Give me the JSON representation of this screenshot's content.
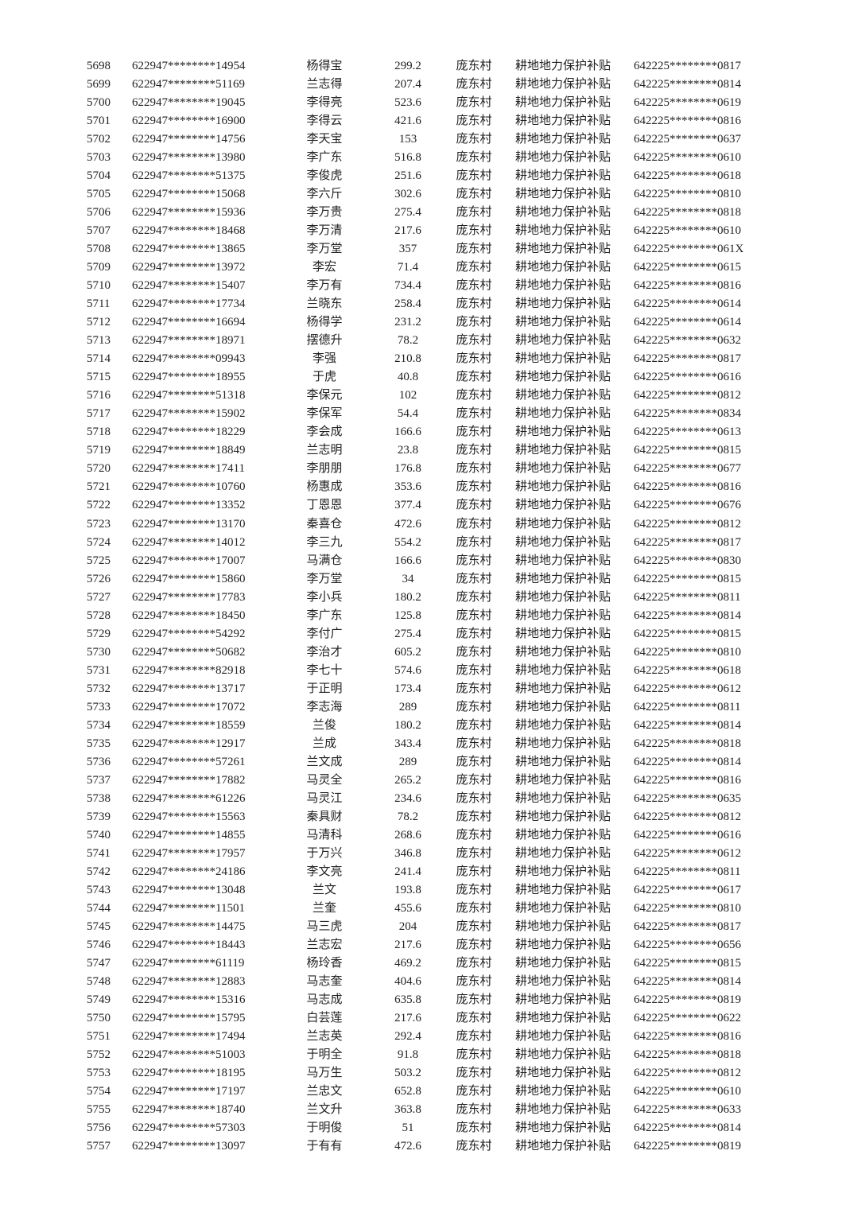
{
  "columns": [
    "seq",
    "account",
    "name",
    "amount",
    "village",
    "subsidy",
    "id_number"
  ],
  "rows": [
    [
      "5698",
      "622947********14954",
      "杨得宝",
      "299.2",
      "庞东村",
      "耕地地力保护补贴",
      "642225********0817"
    ],
    [
      "5699",
      "622947********51169",
      "兰志得",
      "207.4",
      "庞东村",
      "耕地地力保护补贴",
      "642225********0814"
    ],
    [
      "5700",
      "622947********19045",
      "李得亮",
      "523.6",
      "庞东村",
      "耕地地力保护补贴",
      "642225********0619"
    ],
    [
      "5701",
      "622947********16900",
      "李得云",
      "421.6",
      "庞东村",
      "耕地地力保护补贴",
      "642225********0816"
    ],
    [
      "5702",
      "622947********14756",
      "李天宝",
      "153",
      "庞东村",
      "耕地地力保护补贴",
      "642225********0637"
    ],
    [
      "5703",
      "622947********13980",
      "李广东",
      "516.8",
      "庞东村",
      "耕地地力保护补贴",
      "642225********0610"
    ],
    [
      "5704",
      "622947********51375",
      "李俊虎",
      "251.6",
      "庞东村",
      "耕地地力保护补贴",
      "642225********0618"
    ],
    [
      "5705",
      "622947********15068",
      "李六斤",
      "302.6",
      "庞东村",
      "耕地地力保护补贴",
      "642225********0810"
    ],
    [
      "5706",
      "622947********15936",
      "李万贵",
      "275.4",
      "庞东村",
      "耕地地力保护补贴",
      "642225********0818"
    ],
    [
      "5707",
      "622947********18468",
      "李万清",
      "217.6",
      "庞东村",
      "耕地地力保护补贴",
      "642225********0610"
    ],
    [
      "5708",
      "622947********13865",
      "李万堂",
      "357",
      "庞东村",
      "耕地地力保护补贴",
      "642225********061X"
    ],
    [
      "5709",
      "622947********13972",
      "李宏",
      "71.4",
      "庞东村",
      "耕地地力保护补贴",
      "642225********0615"
    ],
    [
      "5710",
      "622947********15407",
      "李万有",
      "734.4",
      "庞东村",
      "耕地地力保护补贴",
      "642225********0816"
    ],
    [
      "5711",
      "622947********17734",
      "兰晓东",
      "258.4",
      "庞东村",
      "耕地地力保护补贴",
      "642225********0614"
    ],
    [
      "5712",
      "622947********16694",
      "杨得学",
      "231.2",
      "庞东村",
      "耕地地力保护补贴",
      "642225********0614"
    ],
    [
      "5713",
      "622947********18971",
      "摆德升",
      "78.2",
      "庞东村",
      "耕地地力保护补贴",
      "642225********0632"
    ],
    [
      "5714",
      "622947********09943",
      "李强",
      "210.8",
      "庞东村",
      "耕地地力保护补贴",
      "642225********0817"
    ],
    [
      "5715",
      "622947********18955",
      "于虎",
      "40.8",
      "庞东村",
      "耕地地力保护补贴",
      "642225********0616"
    ],
    [
      "5716",
      "622947********51318",
      "李保元",
      "102",
      "庞东村",
      "耕地地力保护补贴",
      "642225********0812"
    ],
    [
      "5717",
      "622947********15902",
      "李保军",
      "54.4",
      "庞东村",
      "耕地地力保护补贴",
      "642225********0834"
    ],
    [
      "5718",
      "622947********18229",
      "李会成",
      "166.6",
      "庞东村",
      "耕地地力保护补贴",
      "642225********0613"
    ],
    [
      "5719",
      "622947********18849",
      "兰志明",
      "23.8",
      "庞东村",
      "耕地地力保护补贴",
      "642225********0815"
    ],
    [
      "5720",
      "622947********17411",
      "李朋朋",
      "176.8",
      "庞东村",
      "耕地地力保护补贴",
      "642225********0677"
    ],
    [
      "5721",
      "622947********10760",
      "杨惠成",
      "353.6",
      "庞东村",
      "耕地地力保护补贴",
      "642225********0816"
    ],
    [
      "5722",
      "622947********13352",
      "丁恩恩",
      "377.4",
      "庞东村",
      "耕地地力保护补贴",
      "642225********0676"
    ],
    [
      "5723",
      "622947********13170",
      "秦喜仓",
      "472.6",
      "庞东村",
      "耕地地力保护补贴",
      "642225********0812"
    ],
    [
      "5724",
      "622947********14012",
      "李三九",
      "554.2",
      "庞东村",
      "耕地地力保护补贴",
      "642225********0817"
    ],
    [
      "5725",
      "622947********17007",
      "马满仓",
      "166.6",
      "庞东村",
      "耕地地力保护补贴",
      "642225********0830"
    ],
    [
      "5726",
      "622947********15860",
      "李万堂",
      "34",
      "庞东村",
      "耕地地力保护补贴",
      "642225********0815"
    ],
    [
      "5727",
      "622947********17783",
      "李小兵",
      "180.2",
      "庞东村",
      "耕地地力保护补贴",
      "642225********0811"
    ],
    [
      "5728",
      "622947********18450",
      "李广东",
      "125.8",
      "庞东村",
      "耕地地力保护补贴",
      "642225********0814"
    ],
    [
      "5729",
      "622947********54292",
      "李付广",
      "275.4",
      "庞东村",
      "耕地地力保护补贴",
      "642225********0815"
    ],
    [
      "5730",
      "622947********50682",
      "李治才",
      "605.2",
      "庞东村",
      "耕地地力保护补贴",
      "642225********0810"
    ],
    [
      "5731",
      "622947********82918",
      "李七十",
      "574.6",
      "庞东村",
      "耕地地力保护补贴",
      "642225********0618"
    ],
    [
      "5732",
      "622947********13717",
      "于正明",
      "173.4",
      "庞东村",
      "耕地地力保护补贴",
      "642225********0612"
    ],
    [
      "5733",
      "622947********17072",
      "李志海",
      "289",
      "庞东村",
      "耕地地力保护补贴",
      "642225********0811"
    ],
    [
      "5734",
      "622947********18559",
      "兰俊",
      "180.2",
      "庞东村",
      "耕地地力保护补贴",
      "642225********0814"
    ],
    [
      "5735",
      "622947********12917",
      "兰成",
      "343.4",
      "庞东村",
      "耕地地力保护补贴",
      "642225********0818"
    ],
    [
      "5736",
      "622947********57261",
      "兰文成",
      "289",
      "庞东村",
      "耕地地力保护补贴",
      "642225********0814"
    ],
    [
      "5737",
      "622947********17882",
      "马灵全",
      "265.2",
      "庞东村",
      "耕地地力保护补贴",
      "642225********0816"
    ],
    [
      "5738",
      "622947********61226",
      "马灵江",
      "234.6",
      "庞东村",
      "耕地地力保护补贴",
      "642225********0635"
    ],
    [
      "5739",
      "622947********15563",
      "秦具财",
      "78.2",
      "庞东村",
      "耕地地力保护补贴",
      "642225********0812"
    ],
    [
      "5740",
      "622947********14855",
      "马清科",
      "268.6",
      "庞东村",
      "耕地地力保护补贴",
      "642225********0616"
    ],
    [
      "5741",
      "622947********17957",
      "于万兴",
      "346.8",
      "庞东村",
      "耕地地力保护补贴",
      "642225********0612"
    ],
    [
      "5742",
      "622947********24186",
      "李文亮",
      "241.4",
      "庞东村",
      "耕地地力保护补贴",
      "642225********0811"
    ],
    [
      "5743",
      "622947********13048",
      "兰文",
      "193.8",
      "庞东村",
      "耕地地力保护补贴",
      "642225********0617"
    ],
    [
      "5744",
      "622947********11501",
      "兰奎",
      "455.6",
      "庞东村",
      "耕地地力保护补贴",
      "642225********0810"
    ],
    [
      "5745",
      "622947********14475",
      "马三虎",
      "204",
      "庞东村",
      "耕地地力保护补贴",
      "642225********0817"
    ],
    [
      "5746",
      "622947********18443",
      "兰志宏",
      "217.6",
      "庞东村",
      "耕地地力保护补贴",
      "642225********0656"
    ],
    [
      "5747",
      "622947********61119",
      "杨玲香",
      "469.2",
      "庞东村",
      "耕地地力保护补贴",
      "642225********0815"
    ],
    [
      "5748",
      "622947********12883",
      "马志奎",
      "404.6",
      "庞东村",
      "耕地地力保护补贴",
      "642225********0814"
    ],
    [
      "5749",
      "622947********15316",
      "马志成",
      "635.8",
      "庞东村",
      "耕地地力保护补贴",
      "642225********0819"
    ],
    [
      "5750",
      "622947********15795",
      "白芸莲",
      "217.6",
      "庞东村",
      "耕地地力保护补贴",
      "642225********0622"
    ],
    [
      "5751",
      "622947********17494",
      "兰志英",
      "292.4",
      "庞东村",
      "耕地地力保护补贴",
      "642225********0816"
    ],
    [
      "5752",
      "622947********51003",
      "于明全",
      "91.8",
      "庞东村",
      "耕地地力保护补贴",
      "642225********0818"
    ],
    [
      "5753",
      "622947********18195",
      "马万生",
      "503.2",
      "庞东村",
      "耕地地力保护补贴",
      "642225********0812"
    ],
    [
      "5754",
      "622947********17197",
      "兰忠文",
      "652.8",
      "庞东村",
      "耕地地力保护补贴",
      "642225********0610"
    ],
    [
      "5755",
      "622947********18740",
      "兰文升",
      "363.8",
      "庞东村",
      "耕地地力保护补贴",
      "642225********0633"
    ],
    [
      "5756",
      "622947********57303",
      "于明俊",
      "51",
      "庞东村",
      "耕地地力保护补贴",
      "642225********0814"
    ],
    [
      "5757",
      "622947********13097",
      "于有有",
      "472.6",
      "庞东村",
      "耕地地力保护补贴",
      "642225********0819"
    ]
  ]
}
